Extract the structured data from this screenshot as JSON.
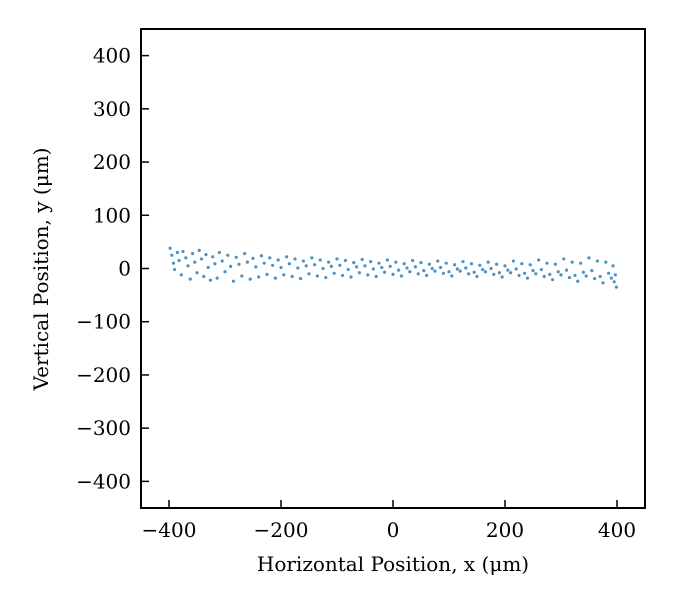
{
  "chart_data": {
    "type": "scatter",
    "title": "",
    "xlabel": "Horizontal Position, x (μm)",
    "ylabel": "Vertical Position, y (μm)",
    "xlim": [
      -450,
      450
    ],
    "ylim": [
      -450,
      450
    ],
    "x_ticks": [
      -400,
      -200,
      0,
      200,
      400
    ],
    "y_ticks": [
      -400,
      -300,
      -200,
      -100,
      0,
      100,
      200,
      300,
      400
    ],
    "x_tick_labels": [
      "−400",
      "−200",
      "0",
      "200",
      "400"
    ],
    "y_tick_labels": [
      "−400",
      "−300",
      "−200",
      "−100",
      "0",
      "100",
      "200",
      "300",
      "400"
    ],
    "grid": false,
    "legend": "none",
    "marker_color": "#1f77b4",
    "series": [
      {
        "points": [
          [
            -398,
            38
          ],
          [
            -395,
            25
          ],
          [
            -392,
            10
          ],
          [
            -390,
            -2
          ],
          [
            -385,
            30
          ],
          [
            -382,
            15
          ],
          [
            -378,
            -12
          ],
          [
            -375,
            32
          ],
          [
            -370,
            20
          ],
          [
            -366,
            5
          ],
          [
            -362,
            -20
          ],
          [
            -358,
            28
          ],
          [
            -354,
            12
          ],
          [
            -350,
            -8
          ],
          [
            -346,
            34
          ],
          [
            -342,
            18
          ],
          [
            -338,
            -15
          ],
          [
            -334,
            26
          ],
          [
            -330,
            2
          ],
          [
            -326,
            -22
          ],
          [
            -322,
            22
          ],
          [
            -318,
            9
          ],
          [
            -314,
            -18
          ],
          [
            -310,
            30
          ],
          [
            -305,
            14
          ],
          [
            -300,
            -6
          ],
          [
            -295,
            25
          ],
          [
            -290,
            4
          ],
          [
            -285,
            -24
          ],
          [
            -280,
            21
          ],
          [
            -275,
            8
          ],
          [
            -270,
            -14
          ],
          [
            -265,
            28
          ],
          [
            -260,
            12
          ],
          [
            -255,
            -20
          ],
          [
            -250,
            19
          ],
          [
            -245,
            3
          ],
          [
            -240,
            -16
          ],
          [
            -235,
            24
          ],
          [
            -230,
            10
          ],
          [
            -225,
            -11
          ],
          [
            -220,
            20
          ],
          [
            -215,
            6
          ],
          [
            -210,
            -18
          ],
          [
            -205,
            16
          ],
          [
            -200,
            2
          ],
          [
            -195,
            -12
          ],
          [
            -190,
            22
          ],
          [
            -185,
            9
          ],
          [
            -180,
            -15
          ],
          [
            -175,
            18
          ],
          [
            -170,
            1
          ],
          [
            -165,
            -19
          ],
          [
            -160,
            14
          ],
          [
            -155,
            5
          ],
          [
            -150,
            -10
          ],
          [
            -145,
            20
          ],
          [
            -140,
            7
          ],
          [
            -135,
            -14
          ],
          [
            -130,
            16
          ],
          [
            -125,
            0
          ],
          [
            -120,
            -17
          ],
          [
            -115,
            12
          ],
          [
            -110,
            4
          ],
          [
            -105,
            -9
          ],
          [
            -100,
            18
          ],
          [
            -95,
            6
          ],
          [
            -90,
            -13
          ],
          [
            -85,
            15
          ],
          [
            -80,
            -2
          ],
          [
            -75,
            -16
          ],
          [
            -70,
            11
          ],
          [
            -65,
            3
          ],
          [
            -60,
            -8
          ],
          [
            -55,
            17
          ],
          [
            -50,
            5
          ],
          [
            -45,
            -12
          ],
          [
            -40,
            13
          ],
          [
            -35,
            -1
          ],
          [
            -30,
            -15
          ],
          [
            -25,
            10
          ],
          [
            -20,
            2
          ],
          [
            -15,
            -7
          ],
          [
            -10,
            16
          ],
          [
            -5,
            4
          ],
          [
            0,
            -11
          ],
          [
            5,
            12
          ],
          [
            10,
            -3
          ],
          [
            15,
            -14
          ],
          [
            20,
            9
          ],
          [
            25,
            1
          ],
          [
            30,
            -6
          ],
          [
            35,
            15
          ],
          [
            40,
            3
          ],
          [
            45,
            -10
          ],
          [
            50,
            11
          ],
          [
            55,
            -4
          ],
          [
            60,
            -13
          ],
          [
            65,
            8
          ],
          [
            70,
            0
          ],
          [
            75,
            -5
          ],
          [
            80,
            14
          ],
          [
            85,
            2
          ],
          [
            90,
            -9
          ],
          [
            95,
            10
          ],
          [
            100,
            -6
          ],
          [
            105,
            -14
          ],
          [
            110,
            7
          ],
          [
            115,
            -1
          ],
          [
            120,
            -5
          ],
          [
            125,
            13
          ],
          [
            130,
            1
          ],
          [
            135,
            -10
          ],
          [
            140,
            9
          ],
          [
            145,
            -7
          ],
          [
            150,
            -15
          ],
          [
            155,
            6
          ],
          [
            160,
            -2
          ],
          [
            165,
            -6
          ],
          [
            170,
            12
          ],
          [
            175,
            0
          ],
          [
            180,
            -11
          ],
          [
            185,
            8
          ],
          [
            190,
            -8
          ],
          [
            195,
            -16
          ],
          [
            200,
            5
          ],
          [
            205,
            -3
          ],
          [
            210,
            -8
          ],
          [
            215,
            14
          ],
          [
            220,
            -1
          ],
          [
            225,
            -13
          ],
          [
            230,
            9
          ],
          [
            235,
            -9
          ],
          [
            240,
            -18
          ],
          [
            245,
            7
          ],
          [
            250,
            -4
          ],
          [
            255,
            -10
          ],
          [
            260,
            16
          ],
          [
            265,
            -2
          ],
          [
            270,
            -15
          ],
          [
            275,
            10
          ],
          [
            280,
            -11
          ],
          [
            285,
            -21
          ],
          [
            290,
            8
          ],
          [
            295,
            -6
          ],
          [
            300,
            -12
          ],
          [
            305,
            18
          ],
          [
            310,
            -3
          ],
          [
            315,
            -17
          ],
          [
            320,
            12
          ],
          [
            325,
            -13
          ],
          [
            330,
            -24
          ],
          [
            335,
            10
          ],
          [
            340,
            -7
          ],
          [
            345,
            -14
          ],
          [
            350,
            20
          ],
          [
            355,
            -4
          ],
          [
            360,
            -19
          ],
          [
            365,
            14
          ],
          [
            370,
            -15
          ],
          [
            375,
            -27
          ],
          [
            380,
            12
          ],
          [
            385,
            -9
          ],
          [
            390,
            -18
          ],
          [
            393,
            5
          ],
          [
            395,
            -25
          ],
          [
            397,
            -12
          ],
          [
            399,
            -35
          ]
        ]
      }
    ]
  }
}
